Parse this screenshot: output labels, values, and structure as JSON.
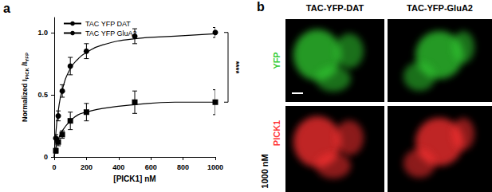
{
  "chart_data": {
    "type": "line",
    "xlabel": "[PICK1] nM",
    "ylabel": [
      {
        "text": "Normalized I",
        "sub": false
      },
      {
        "text": "PICK",
        "sub": true
      },
      {
        "text": " /I",
        "sub": false
      },
      {
        "text": "YFP",
        "sub": true
      }
    ],
    "xlim": [
      0,
      1000
    ],
    "xticks": [
      0,
      200,
      400,
      600,
      800,
      1000
    ],
    "ylim": [
      0,
      1.12
    ],
    "yticks": [
      0,
      0.5,
      {
        "value": 1,
        "label": "1.0"
      }
    ],
    "legend": "upper left",
    "grid": false,
    "annotations": [
      {
        "text": "****",
        "between": [
          "TAC YFP DAT",
          "TAC YFP GluA2"
        ],
        "x": 1000
      }
    ],
    "x": [
      10,
      25,
      50,
      100,
      200,
      500,
      1000
    ],
    "series": [
      {
        "name": "TAC YFP DAT",
        "color": "#000000",
        "marker": "circle",
        "line_style": "solid",
        "values": [
          0.15,
          0.33,
          0.53,
          0.73,
          0.85,
          0.97,
          1.0
        ],
        "errors": [
          0.03,
          0.04,
          0.05,
          0.07,
          0.06,
          0.06,
          0.04
        ],
        "fit": {
          "x": [
            0,
            10,
            25,
            50,
            100,
            150,
            200,
            300,
            500,
            750,
            1000
          ],
          "values": [
            0,
            0.19,
            0.37,
            0.54,
            0.71,
            0.79,
            0.84,
            0.9,
            0.95,
            0.97,
            0.99
          ]
        }
      },
      {
        "name": "TAC YFP GluA2",
        "color": "#000000",
        "marker": "square",
        "line_style": "solid",
        "values": [
          0.05,
          0.12,
          0.18,
          0.29,
          0.36,
          0.44,
          0.44
        ],
        "errors": [
          0.02,
          0.03,
          0.03,
          0.07,
          0.07,
          0.09,
          0.1
        ],
        "fit": {
          "x": [
            0,
            10,
            25,
            50,
            100,
            150,
            200,
            300,
            500,
            750,
            1000
          ],
          "values": [
            0,
            0.07,
            0.14,
            0.21,
            0.29,
            0.34,
            0.36,
            0.39,
            0.42,
            0.44,
            0.44
          ]
        }
      }
    ]
  },
  "figure": {
    "panel_labels": [
      "a",
      "b"
    ],
    "images": {
      "columns": [
        "TAC-YFP-DAT",
        "TAC-YFP-GluA2"
      ],
      "rows": [
        {
          "label": "YFP",
          "color": "#33cc33"
        },
        {
          "label": "PICK1",
          "color": "#ff3333",
          "concentration": "1000 nM"
        }
      ]
    }
  }
}
